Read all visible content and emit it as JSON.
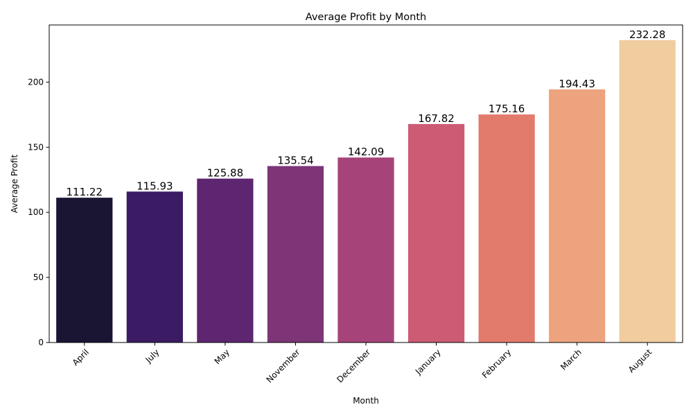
{
  "chart_data": {
    "type": "bar",
    "title": "Average Profit by Month",
    "xlabel": "Month",
    "ylabel": "Average Profit",
    "categories": [
      "April",
      "July",
      "May",
      "November",
      "December",
      "January",
      "February",
      "March",
      "August"
    ],
    "values": [
      111.22,
      115.93,
      125.88,
      135.54,
      142.09,
      167.82,
      175.16,
      194.43,
      232.28
    ],
    "value_labels": [
      "111.22",
      "115.93",
      "125.88",
      "135.54",
      "142.09",
      "167.82",
      "175.16",
      "194.43",
      "232.28"
    ],
    "colors": [
      "#1b1534",
      "#3b1b63",
      "#5e2570",
      "#7d3578",
      "#a6447a",
      "#cc5b73",
      "#e37b6c",
      "#eda47e",
      "#f1cc9e"
    ],
    "ylim": [
      0,
      243.9
    ],
    "yticks": [
      0,
      50,
      100,
      150,
      200
    ],
    "grid": false,
    "legend": "none",
    "x_tick_rotation": 45
  }
}
